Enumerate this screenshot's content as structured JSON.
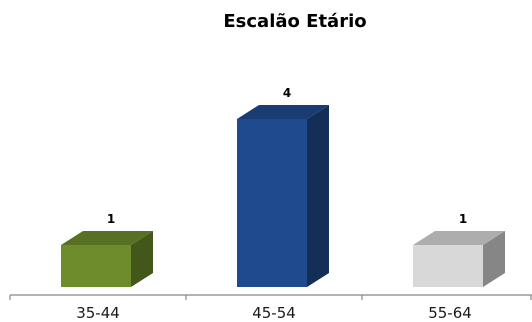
{
  "chart_data": {
    "type": "bar",
    "title": "Escalão Etário",
    "categories": [
      "35-44",
      "45-54",
      "55-64"
    ],
    "values": [
      1,
      4,
      1
    ],
    "ylim": [
      0,
      4
    ],
    "colors": [
      "#6e8c2c",
      "#1f4b8e",
      "#d8d8d8"
    ],
    "grid": false,
    "legend": "none",
    "data_labels": true,
    "style": "3d-column"
  }
}
